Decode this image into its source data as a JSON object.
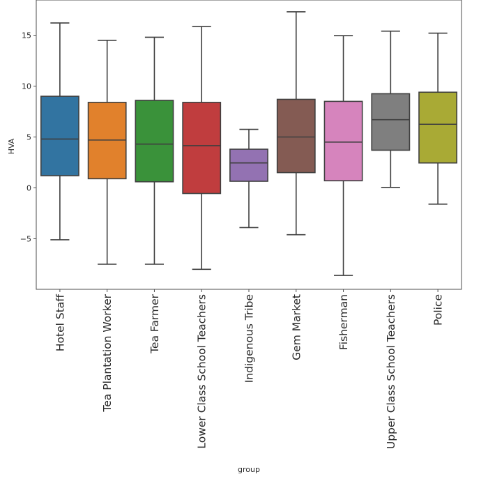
{
  "chart_data": {
    "type": "boxplot",
    "title": "",
    "xlabel": "group",
    "ylabel": "HVA",
    "ylim": [
      -9.7,
      18.5
    ],
    "yticks": [
      -5,
      0,
      5,
      10,
      15
    ],
    "ytick_labels": [
      "−5",
      "0",
      "5",
      "10",
      "15"
    ],
    "grid": false,
    "legend": null,
    "categories": [
      "Hotel Staff",
      "Tea Plantation Worker",
      "Tea Farmer",
      "Lower Class School Teachers",
      "Indigenous Tribe",
      "Gem Market",
      "Fisherman",
      "Upper Class School Teachers",
      "Police"
    ],
    "colors": [
      "#3274a1",
      "#e1812c",
      "#3a923a",
      "#c03d3e",
      "#9372b2",
      "#845b53",
      "#d684bd",
      "#7f7f7f",
      "#a9aa35"
    ],
    "edge_color": "#3f3f3f",
    "boxes": [
      {
        "name": "Hotel Staff",
        "whisker_low": -5.1,
        "q1": 1.2,
        "median": 4.8,
        "q3": 9.0,
        "whisker_high": 16.2
      },
      {
        "name": "Tea Plantation Worker",
        "whisker_low": -7.5,
        "q1": 0.9,
        "median": 4.7,
        "q3": 8.4,
        "whisker_high": 14.5
      },
      {
        "name": "Tea Farmer",
        "whisker_low": -7.5,
        "q1": 0.6,
        "median": 4.3,
        "q3": 8.6,
        "whisker_high": 14.8
      },
      {
        "name": "Lower Class School Teachers",
        "whisker_low": -8.0,
        "q1": -0.55,
        "median": 4.15,
        "q3": 8.4,
        "whisker_high": 15.85
      },
      {
        "name": "Indigenous Tribe",
        "whisker_low": -3.9,
        "q1": 0.65,
        "median": 2.45,
        "q3": 3.8,
        "whisker_high": 5.75
      },
      {
        "name": "Gem Market",
        "whisker_low": -4.6,
        "q1": 1.5,
        "median": 5.0,
        "q3": 8.7,
        "whisker_high": 17.3
      },
      {
        "name": "Fisherman",
        "whisker_low": -8.6,
        "q1": 0.7,
        "median": 4.5,
        "q3": 8.5,
        "whisker_high": 14.95
      },
      {
        "name": "Upper Class School Teachers",
        "whisker_low": 0.05,
        "q1": 3.7,
        "median": 6.7,
        "q3": 9.25,
        "whisker_high": 15.4
      },
      {
        "name": "Police",
        "whisker_low": -1.6,
        "q1": 2.45,
        "median": 6.25,
        "q3": 9.4,
        "whisker_high": 15.2
      }
    ]
  }
}
